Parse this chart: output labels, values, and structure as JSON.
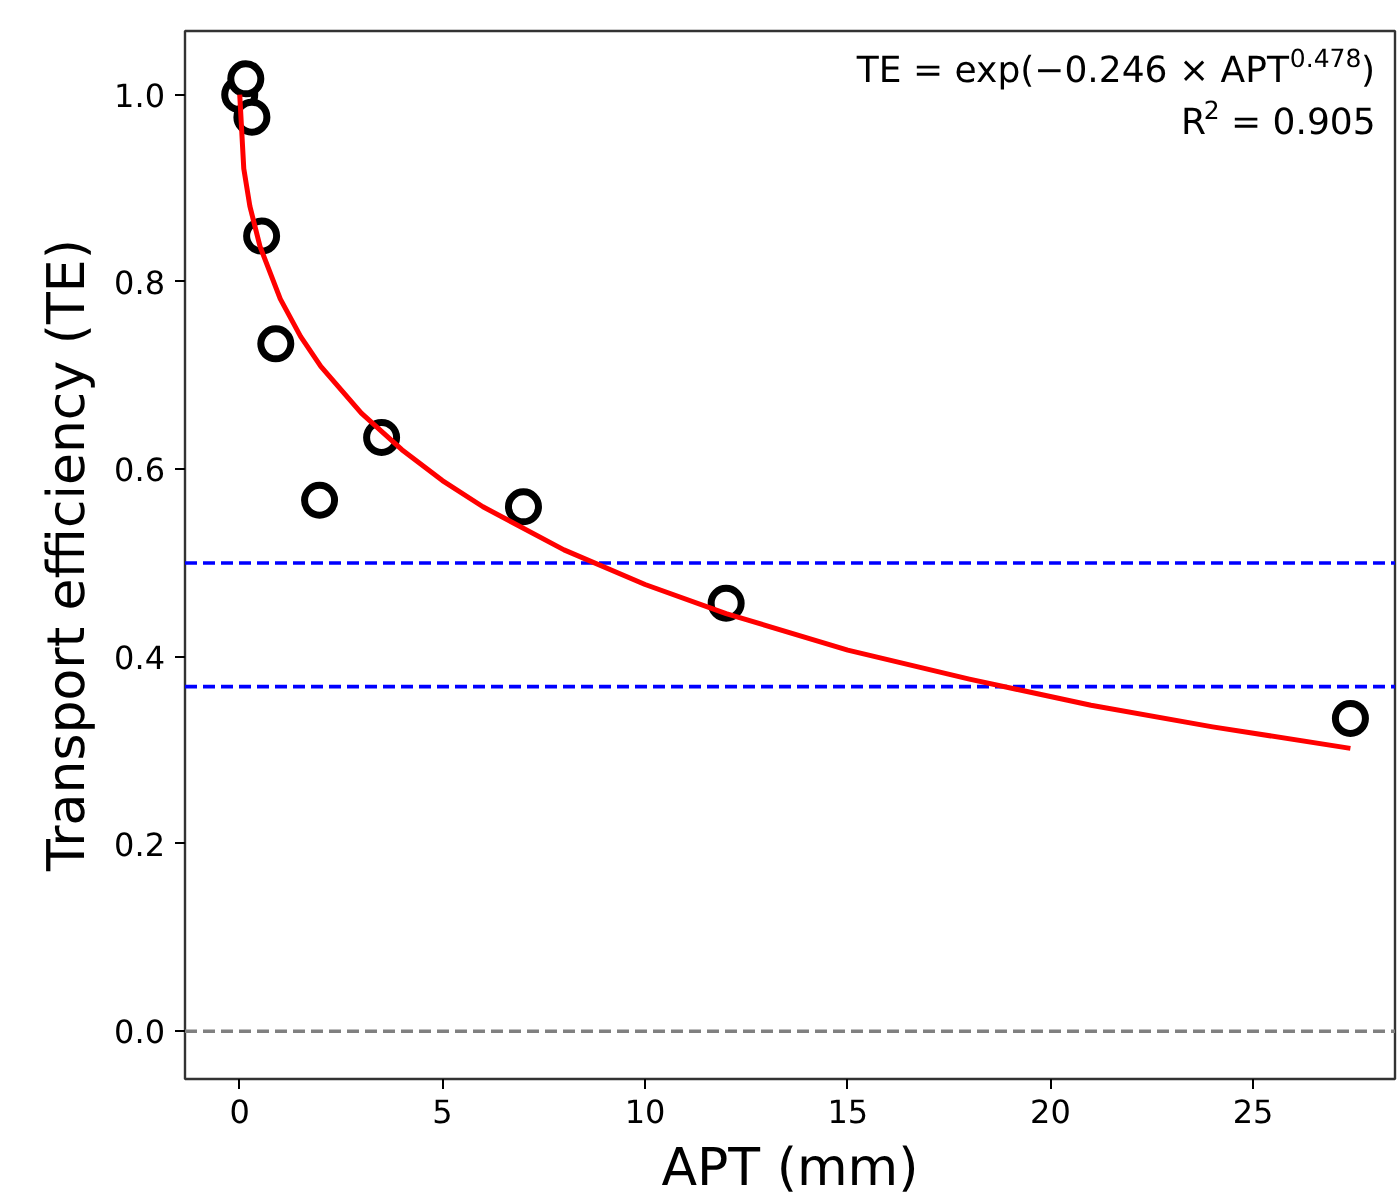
{
  "chart_data": {
    "type": "scatter",
    "xlabel": "APT (mm)",
    "ylabel": "Transport efficiency (TE)",
    "xlim": [
      -1.35,
      28.5
    ],
    "ylim": [
      -0.051,
      1.068
    ],
    "xticks": [
      0,
      5,
      10,
      15,
      20,
      25
    ],
    "yticks": [
      {
        "value": 0,
        "label": "0.0"
      },
      0.2,
      0.4,
      0.6,
      0.8,
      {
        "value": 1,
        "label": "1.0"
      }
    ],
    "grid": false,
    "marker": "circle",
    "series": [
      {
        "color": "#000000",
        "x": [
          0,
          0.15,
          0.3,
          0.54,
          0.89,
          1.97,
          3.5,
          7.0,
          12.0,
          27.4
        ],
        "values": [
          1.0,
          1.017,
          0.976,
          0.849,
          0.734,
          0.567,
          0.634,
          0.56,
          0.457,
          0.334
        ]
      },
      {
        "type": "line",
        "color": "#ff0000",
        "line_style": "solid",
        "marker": "none",
        "x": [
          0,
          0.1,
          0.25,
          0.5,
          1,
          1.5,
          2,
          3,
          4,
          5,
          6,
          8,
          10,
          12,
          15,
          18,
          21,
          24,
          27.4
        ],
        "values": [
          1.0,
          0.921,
          0.881,
          0.838,
          0.782,
          0.742,
          0.71,
          0.66,
          0.621,
          0.588,
          0.56,
          0.514,
          0.477,
          0.446,
          0.407,
          0.376,
          0.348,
          0.325,
          0.302
        ]
      }
    ],
    "ref_lines": [
      {
        "axis": "y",
        "value": 0.5,
        "color": "#0000ff",
        "line_style": "dashed"
      },
      {
        "axis": "y",
        "value": 0.368,
        "color": "#0000ff",
        "line_style": "dashed"
      },
      {
        "axis": "y",
        "value": 0,
        "color": "#808080",
        "line_style": "dashed"
      }
    ],
    "annotations": [
      "TE = exp(−0.246 × APT$^{0.478}$)",
      "R$^{2}$ = 0.905"
    ]
  }
}
